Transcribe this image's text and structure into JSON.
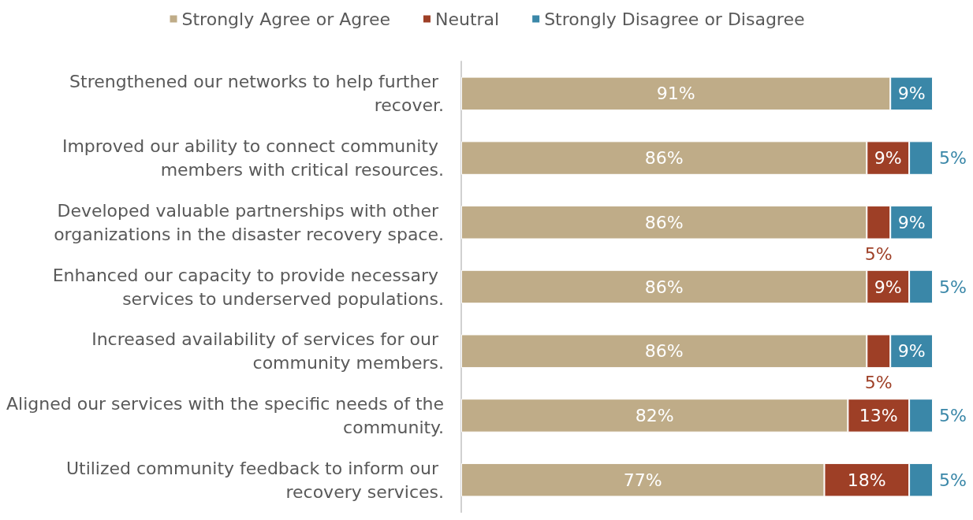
{
  "chart_data": {
    "type": "bar",
    "orientation": "horizontal",
    "stacked": true,
    "legend": "top",
    "tick_labels": "y",
    "categories": [
      "Strengthened our networks to help further recover.",
      "Improved our ability to connect community members with critical resources.",
      "Developed valuable partnerships with other organizations in the disaster recovery space.",
      "Enhanced our capacity to provide necessary services to underserved populations.",
      "Increased availability of services for our community members.",
      "Aligned our services with the specific needs of the community.",
      "Utilized community feedback to inform our recovery services."
    ],
    "series": [
      {
        "name": "Strongly Agree or Agree",
        "color": "#bfac88",
        "values": [
          91,
          86,
          86,
          86,
          86,
          82,
          77
        ],
        "value_labels": [
          "91%",
          "86%",
          "86%",
          "86%",
          "86%",
          "82%",
          "77%"
        ]
      },
      {
        "name": "Neutral",
        "color": "#9e3f26",
        "values": [
          null,
          9,
          5,
          9,
          5,
          13,
          18
        ],
        "value_labels": [
          null,
          "9%",
          "5%",
          "9%",
          "5%",
          "13%",
          "18%"
        ]
      },
      {
        "name": "Strongly Disagree or Disagree",
        "color": "#3a87a8",
        "values": [
          9,
          5,
          9,
          5,
          9,
          5,
          5
        ],
        "value_labels": [
          "9%",
          "5%",
          "9%",
          "5%",
          "9%",
          "5%",
          "5%"
        ]
      }
    ]
  }
}
